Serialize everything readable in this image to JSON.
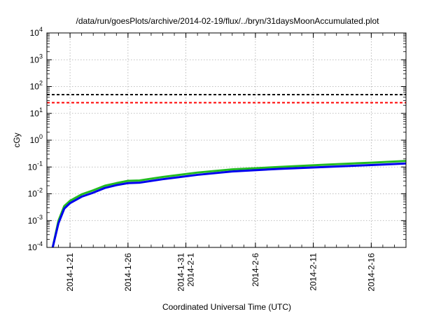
{
  "chart_data": {
    "type": "line",
    "title": "/data/run/goesPlots/archive/2014-02-19/flux/../bryn/31daysMoonAccumulated.plot",
    "xlabel": "Coordinated Universal Time (UTC)",
    "ylabel": "cGy",
    "yscale": "log",
    "ylim": [
      0.0001,
      10000
    ],
    "xlim": [
      "2014-01-19",
      "2014-02-19"
    ],
    "grid": true,
    "y_ticks": [
      {
        "value": 0.0001,
        "base": "10",
        "exp": "-4"
      },
      {
        "value": 0.001,
        "base": "10",
        "exp": "-3"
      },
      {
        "value": 0.01,
        "base": "10",
        "exp": "-2"
      },
      {
        "value": 0.1,
        "base": "10",
        "exp": "-1"
      },
      {
        "value": 1,
        "base": "10",
        "exp": "0"
      },
      {
        "value": 10,
        "base": "10",
        "exp": "1"
      },
      {
        "value": 100,
        "base": "10",
        "exp": "2"
      },
      {
        "value": 1000,
        "base": "10",
        "exp": "3"
      },
      {
        "value": 10000,
        "base": "10",
        "exp": "4"
      }
    ],
    "x_ticks": [
      {
        "x": "2014-01-21",
        "lines": [
          "2014-1-21"
        ]
      },
      {
        "x": "2014-01-26",
        "lines": [
          "2014-1-26"
        ]
      },
      {
        "x": "2014-01-31",
        "lines": [
          "2014-1-31",
          "2014-2-1"
        ]
      },
      {
        "x": "2014-02-06",
        "lines": [
          "2014-2-6"
        ]
      },
      {
        "x": "2014-02-11",
        "lines": [
          "2014-2-11"
        ]
      },
      {
        "x": "2014-02-16",
        "lines": [
          "2014-2-16"
        ]
      }
    ],
    "series": [
      {
        "color": "#22bb22",
        "x": [
          "2014-01-19T12:00",
          "2014-01-20T00:00",
          "2014-01-20T12:00",
          "2014-01-21T00:00",
          "2014-01-22T00:00",
          "2014-01-23T00:00",
          "2014-01-24T00:00",
          "2014-01-25T00:00",
          "2014-01-26T00:00",
          "2014-01-27T00:00",
          "2014-01-29T00:00",
          "2014-02-01T00:00",
          "2014-02-04T00:00",
          "2014-02-08T00:00",
          "2014-02-12T00:00",
          "2014-02-16T00:00",
          "2014-02-19T00:00"
        ],
        "y": [
          0.0001,
          0.001,
          0.0035,
          0.0055,
          0.0095,
          0.0135,
          0.02,
          0.025,
          0.0305,
          0.0315,
          0.0425,
          0.062,
          0.0815,
          0.1,
          0.122,
          0.145,
          0.168
        ]
      },
      {
        "color": "#0000ee",
        "x": [
          "2014-01-19T12:00",
          "2014-01-20T00:00",
          "2014-01-20T12:00",
          "2014-01-21T00:00",
          "2014-01-22T00:00",
          "2014-01-23T00:00",
          "2014-01-24T00:00",
          "2014-01-25T00:00",
          "2014-01-26T00:00",
          "2014-01-27T00:00",
          "2014-01-29T00:00",
          "2014-02-01T00:00",
          "2014-02-04T00:00",
          "2014-02-08T00:00",
          "2014-02-12T00:00",
          "2014-02-16T00:00",
          "2014-02-19T00:00"
        ],
        "y": [
          0.0001,
          0.0008,
          0.0028,
          0.0045,
          0.0078,
          0.011,
          0.0165,
          0.021,
          0.025,
          0.026,
          0.035,
          0.051,
          0.068,
          0.085,
          0.1,
          0.118,
          0.135
        ]
      },
      {
        "color": "#000000",
        "style": "dashed",
        "x": [
          "2014-01-19T00:00",
          "2014-02-19T00:00"
        ],
        "y": [
          50,
          50
        ]
      },
      {
        "color": "#ff0000",
        "style": "dashed",
        "x": [
          "2014-01-19T00:00",
          "2014-02-19T00:00"
        ],
        "y": [
          25,
          25
        ]
      }
    ]
  }
}
